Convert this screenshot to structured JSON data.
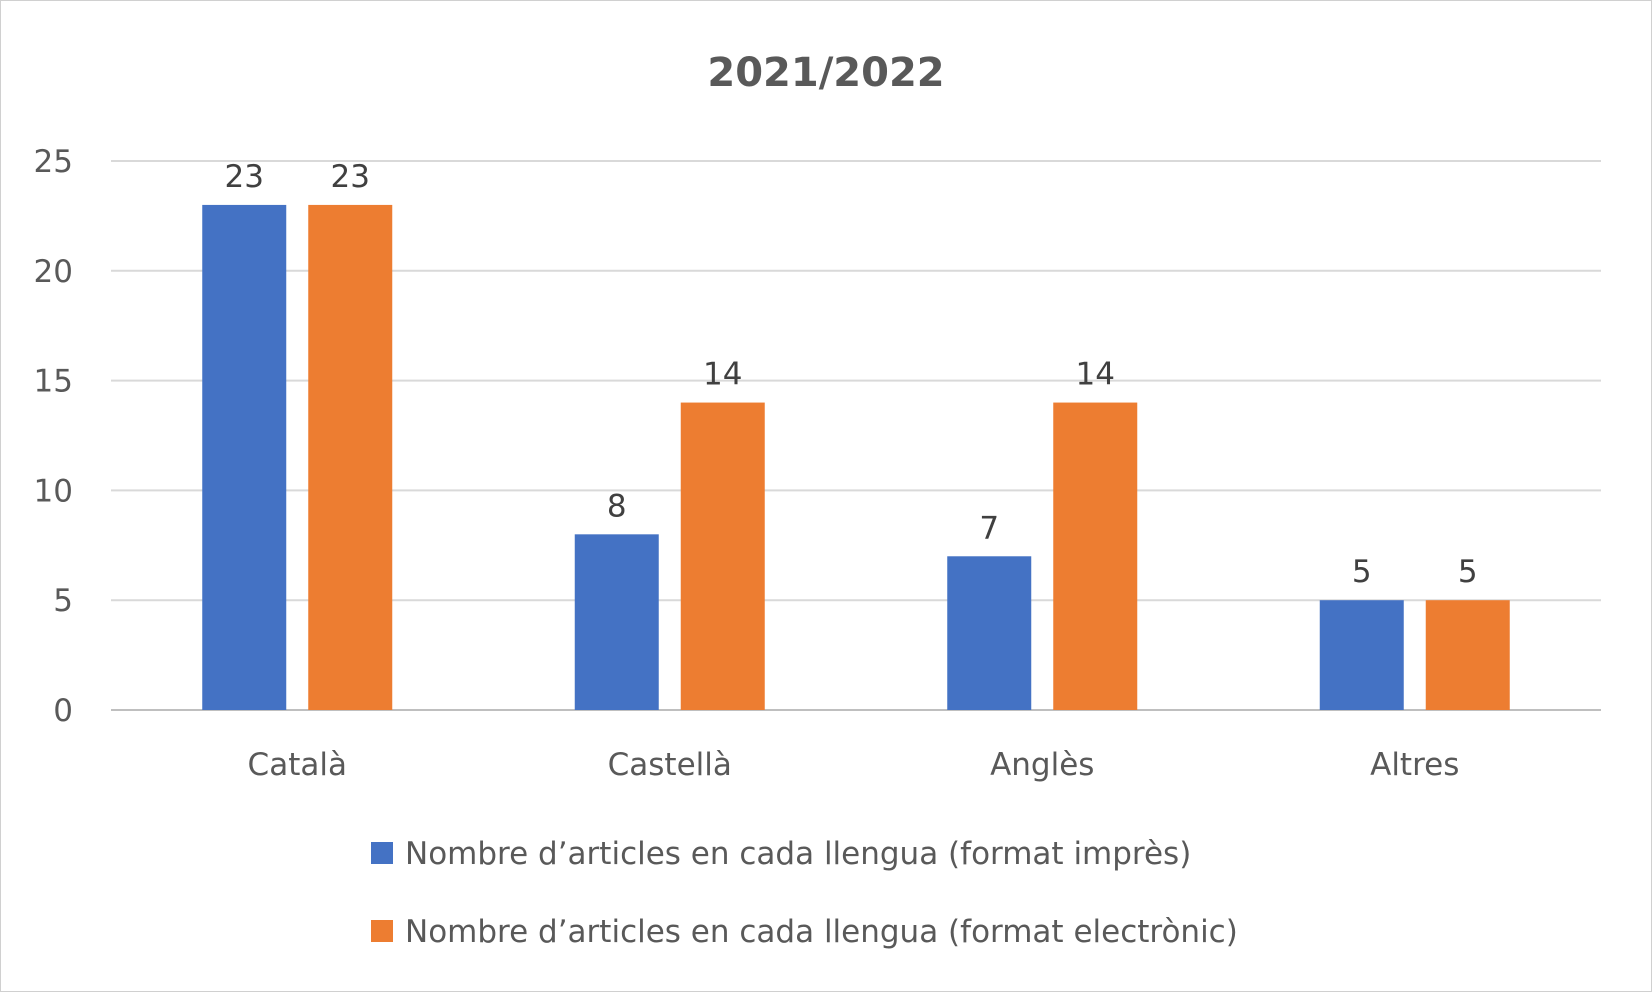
{
  "chart_data": {
    "type": "bar",
    "title": "2021/2022",
    "xlabel": "",
    "ylabel": "",
    "categories": [
      "Català",
      "Castellà",
      "Anglès",
      "Altres"
    ],
    "series": [
      {
        "name": "Nombre d’articles en cada llengua (format imprès)",
        "values": [
          23,
          8,
          7,
          5
        ]
      },
      {
        "name": "Nombre d’articles en cada llengua (format electrònic)",
        "values": [
          23,
          14,
          14,
          5
        ]
      }
    ],
    "ylim": [
      0,
      25
    ],
    "yticks": [
      0,
      5,
      10,
      15,
      20,
      25
    ],
    "grid": true,
    "legend_position": "bottom",
    "colors": [
      "#4472C4",
      "#ED7D31"
    ]
  }
}
